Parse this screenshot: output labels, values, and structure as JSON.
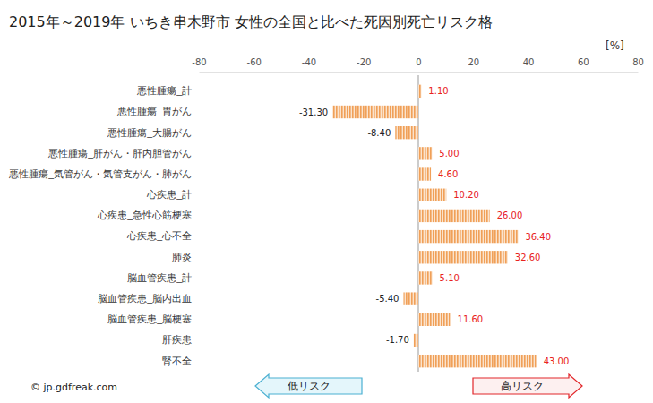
{
  "chart_data": {
    "type": "bar",
    "orientation": "horizontal",
    "title": "2015年～2019年 いちき串木野市 女性の全国と比べた死因別死亡リスク格",
    "xlabel": "[%]",
    "categories": [
      "悪性腫瘍_計",
      "悪性腫瘍_胃がん",
      "悪性腫瘍_大腸がん",
      "悪性腫瘍_肝がん・肝内胆管がん",
      "悪性腫瘍_気管がん・気管支がん・肺がん",
      "心疾患_計",
      "心疾患_急性心筋梗塞",
      "心疾患_心不全",
      "肺炎",
      "脳血管疾患_計",
      "脳血管疾患_脳内出血",
      "脳血管疾患_脳梗塞",
      "肝疾患",
      "腎不全"
    ],
    "values": [
      1.1,
      -31.3,
      -8.4,
      5.0,
      4.6,
      10.2,
      26.0,
      36.4,
      32.6,
      5.1,
      -5.4,
      11.6,
      -1.7,
      43.0
    ],
    "value_labels": [
      "1.10",
      "-31.30",
      "-8.40",
      "5.00",
      "4.60",
      "10.20",
      "26.00",
      "36.40",
      "32.60",
      "5.10",
      "-5.40",
      "11.60",
      "-1.70",
      "43.00"
    ],
    "data_labels": true,
    "color": "#f0a058",
    "xlim": [
      -80,
      80
    ],
    "xticks": [
      -80,
      -60,
      -40,
      -20,
      0,
      20,
      40,
      60,
      80
    ],
    "grid": false,
    "annotations": [
      "© jp.gdfreak.com",
      "低リスク",
      "高リスク"
    ]
  }
}
